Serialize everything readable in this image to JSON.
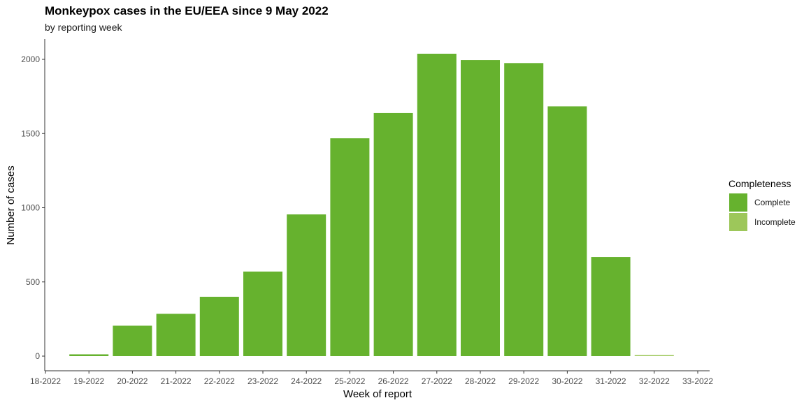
{
  "chart_data": {
    "type": "bar",
    "title": "Monkeypox cases in the EU/EEA since 9 May 2022",
    "subtitle": "by reporting week",
    "xlabel": "Week of report",
    "ylabel": "Number of cases",
    "x_ticks": [
      "18-2022",
      "19-2022",
      "20-2022",
      "21-2022",
      "22-2022",
      "23-2022",
      "24-2022",
      "25-2022",
      "26-2022",
      "27-2022",
      "28-2022",
      "29-2022",
      "30-2022",
      "31-2022",
      "32-2022",
      "33-2022"
    ],
    "categories": [
      "19-2022",
      "20-2022",
      "21-2022",
      "22-2022",
      "23-2022",
      "24-2022",
      "25-2022",
      "26-2022",
      "27-2022",
      "28-2022",
      "29-2022",
      "30-2022",
      "31-2022",
      "32-2022"
    ],
    "values": [
      12,
      205,
      285,
      400,
      570,
      955,
      1468,
      1638,
      2038,
      1995,
      1975,
      1683,
      668,
      5
    ],
    "completeness": [
      "Complete",
      "Complete",
      "Complete",
      "Complete",
      "Complete",
      "Complete",
      "Complete",
      "Complete",
      "Complete",
      "Complete",
      "Complete",
      "Complete",
      "Complete",
      "Incomplete"
    ],
    "ylim": [
      0,
      2100
    ],
    "y_ticks": [
      0,
      500,
      1000,
      1500,
      2000
    ],
    "grid": false,
    "legend": {
      "title": "Completeness",
      "position": "right",
      "items": [
        {
          "label": "Complete",
          "color": "#66b22e"
        },
        {
          "label": "Incomplete",
          "color": "#9dc75a"
        }
      ]
    }
  }
}
